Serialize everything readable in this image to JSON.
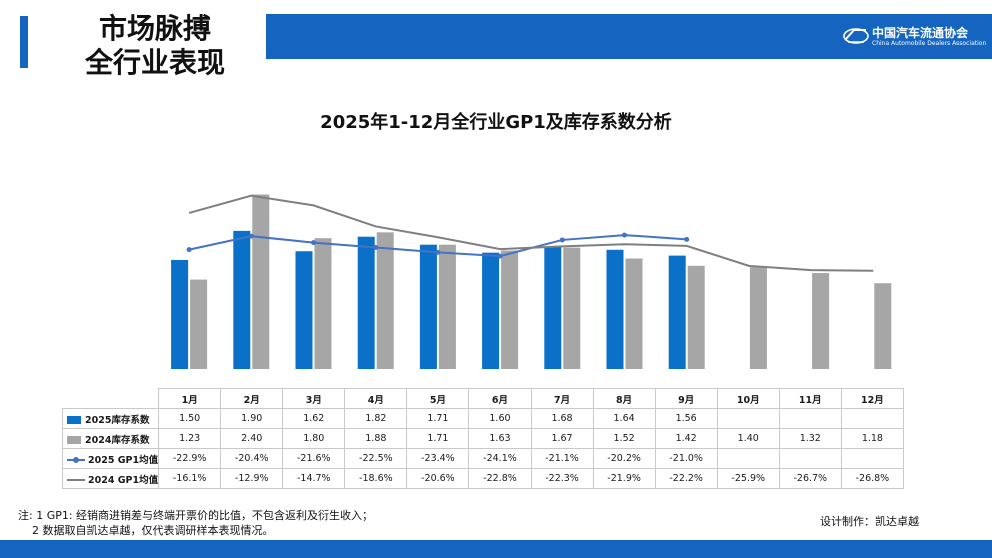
{
  "header": {
    "title_line1": "市场脉搏",
    "title_line2": "全行业表现",
    "logo_cn": "中国汽车流通协会",
    "logo_en": "China Automobile Dealers Association"
  },
  "colors": {
    "accent": "#1565c0",
    "bar_2025": "#0a70c8",
    "bar_2024": "#a6a6a6",
    "line_2025": "#4472c4",
    "line_2024": "#7f7f7f"
  },
  "chart_data": {
    "type": "bar+line",
    "title": "2025年1-12月全行业GP1及库存系数分析",
    "categories": [
      "1月",
      "2月",
      "3月",
      "4月",
      "5月",
      "6月",
      "7月",
      "8月",
      "9月",
      "10月",
      "11月",
      "12月"
    ],
    "series": [
      {
        "name": "2025库存系数",
        "kind": "bar",
        "axis": "left",
        "values": [
          1.5,
          1.9,
          1.62,
          1.82,
          1.71,
          1.6,
          1.68,
          1.64,
          1.56,
          null,
          null,
          null
        ],
        "labels": [
          "1.50",
          "1.90",
          "1.62",
          "1.82",
          "1.71",
          "1.60",
          "1.68",
          "1.64",
          "1.56",
          "",
          "",
          ""
        ]
      },
      {
        "name": "2024库存系数",
        "kind": "bar",
        "axis": "left",
        "values": [
          1.23,
          2.4,
          1.8,
          1.88,
          1.71,
          1.63,
          1.67,
          1.52,
          1.42,
          1.4,
          1.32,
          1.18
        ],
        "labels": [
          "1.23",
          "2.40",
          "1.80",
          "1.88",
          "1.71",
          "1.63",
          "1.67",
          "1.52",
          "1.42",
          "1.40",
          "1.32",
          "1.18"
        ]
      },
      {
        "name": "2025 GP1均值",
        "kind": "line",
        "marker": true,
        "axis": "right",
        "values": [
          -22.9,
          -20.4,
          -21.6,
          -22.5,
          -23.4,
          -24.1,
          -21.1,
          -20.2,
          -21.0,
          null,
          null,
          null
        ],
        "labels": [
          "-22.9%",
          "-20.4%",
          "-21.6%",
          "-22.5%",
          "-23.4%",
          "-24.1%",
          "-21.1%",
          "-20.2%",
          "-21.0%",
          "",
          "",
          ""
        ]
      },
      {
        "name": "2024 GP1均值",
        "kind": "line",
        "marker": false,
        "axis": "right",
        "values": [
          -16.1,
          -12.9,
          -14.7,
          -18.6,
          -20.6,
          -22.8,
          -22.3,
          -21.9,
          -22.2,
          -25.9,
          -26.7,
          -26.8
        ],
        "labels": [
          "-16.1%",
          "-12.9%",
          "-14.7%",
          "-18.6%",
          "-20.6%",
          "-22.8%",
          "-22.3%",
          "-21.9%",
          "-22.2%",
          "-25.9%",
          "-26.7%",
          "-26.8%"
        ]
      }
    ],
    "ylim_left": [
      0,
      2.6
    ],
    "ylim_right": [
      -45,
      -10
    ],
    "grid": false,
    "legend": "data-table"
  },
  "footer": {
    "note_line1": "注: 1 GP1: 经销商进销差与终端开票价的比值，不包含返利及衍生收入；",
    "note_line2": "2 数据取自凯达卓越，仅代表调研样本表现情况。",
    "credit": "设计制作：凯达卓越"
  }
}
